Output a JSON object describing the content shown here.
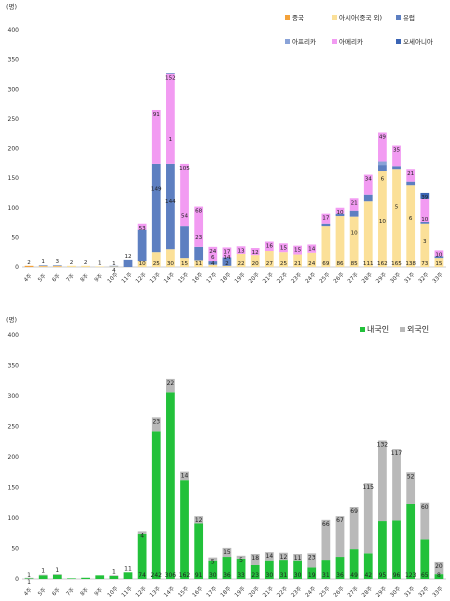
{
  "chart_data": [
    {
      "type": "bar",
      "stacked": true,
      "unit": "(명)",
      "ylim": [
        0,
        400
      ],
      "yticks": [
        0,
        50,
        100,
        150,
        200,
        250,
        300,
        350,
        400
      ],
      "legend_position": "top-right",
      "categories": [
        "4주",
        "5주",
        "6주",
        "7주",
        "8주",
        "9주",
        "10주",
        "11주",
        "12주",
        "13주",
        "14주",
        "15주",
        "16주",
        "17주",
        "18주",
        "19주",
        "20주",
        "21주",
        "22주",
        "23주",
        "24주",
        "25주",
        "26주",
        "27주",
        "28주",
        "29주",
        "30주",
        "31주",
        "32주",
        "33주"
      ],
      "colors": {
        "china": "#f4a23a",
        "asia": "#fbe098",
        "europe": "#5d7fc1",
        "africa": "#8aa3d8",
        "america": "#f29bf2",
        "oceania": "#3a64b4"
      },
      "series": [
        {
          "key": "china",
          "name": "중국",
          "values": [
            2,
            1,
            1,
            0,
            0,
            0,
            0,
            0,
            0,
            0,
            0,
            0,
            0,
            0,
            0,
            0,
            0,
            0,
            0,
            0,
            0,
            0,
            0,
            0,
            0,
            0,
            0,
            0,
            0,
            0
          ]
        },
        {
          "key": "asia",
          "name": "아시아(중국 외)",
          "values": [
            0,
            1,
            1,
            2,
            2,
            1,
            1,
            0,
            10,
            25,
            30,
            15,
            11,
            4,
            2,
            22,
            20,
            27,
            25,
            21,
            24,
            69,
            86,
            85,
            111,
            162,
            165,
            138,
            73,
            15
          ]
        },
        {
          "key": "europe",
          "name": "유럽",
          "values": [
            0,
            1,
            1,
            0,
            0,
            0,
            1,
            12,
            53,
            149,
            144,
            54,
            23,
            6,
            14,
            0,
            0,
            0,
            0,
            0,
            0,
            4,
            4,
            10,
            11,
            10,
            5,
            6,
            3,
            3
          ]
        },
        {
          "key": "africa",
          "name": "아프리카",
          "values": [
            0,
            0,
            0,
            0,
            0,
            0,
            0,
            0,
            0,
            0,
            0,
            0,
            0,
            0,
            0,
            0,
            0,
            0,
            0,
            0,
            0,
            0,
            0,
            0,
            0,
            6,
            0,
            0,
            0,
            0
          ]
        },
        {
          "key": "america",
          "name": "아메리카",
          "values": [
            0,
            0,
            0,
            0,
            0,
            0,
            0,
            0,
            10,
            91,
            152,
            105,
            68,
            24,
            17,
            13,
            12,
            16,
            15,
            15,
            14,
            17,
            10,
            21,
            34,
            49,
            35,
            21,
            39,
            10
          ]
        },
        {
          "key": "oceania",
          "name": "오세아니아",
          "values": [
            0,
            0,
            0,
            0,
            0,
            0,
            0,
            0,
            0,
            0,
            1,
            0,
            0,
            0,
            0,
            0,
            0,
            0,
            0,
            0,
            0,
            0,
            0,
            0,
            0,
            0,
            0,
            0,
            10,
            0
          ]
        }
      ],
      "data_labels": [
        {
          "i": 0,
          "text": "2"
        },
        {
          "i": 1,
          "text": "1"
        },
        {
          "i": 2,
          "text": "3"
        },
        {
          "i": 3,
          "text": "2"
        },
        {
          "i": 4,
          "text": "2"
        },
        {
          "i": 5,
          "text": "1"
        },
        {
          "i": 6,
          "text": "4"
        },
        {
          "i": 6,
          "text": "1"
        },
        {
          "i": 7,
          "text": "12"
        },
        {
          "i": 8,
          "text": "53"
        },
        {
          "i": 8,
          "text": "10"
        },
        {
          "i": 9,
          "text": "91"
        },
        {
          "i": 9,
          "text": "149"
        },
        {
          "i": 9,
          "text": "25"
        },
        {
          "i": 10,
          "text": "152"
        },
        {
          "i": 10,
          "text": "1"
        },
        {
          "i": 10,
          "text": "144"
        },
        {
          "i": 10,
          "text": "30"
        },
        {
          "i": 11,
          "text": "105"
        },
        {
          "i": 11,
          "text": "54"
        },
        {
          "i": 11,
          "text": "15"
        },
        {
          "i": 12,
          "text": "68"
        },
        {
          "i": 12,
          "text": "23"
        },
        {
          "i": 12,
          "text": "11"
        },
        {
          "i": 13,
          "text": "24"
        },
        {
          "i": 13,
          "text": "6"
        },
        {
          "i": 13,
          "text": "4"
        },
        {
          "i": 14,
          "text": "17"
        },
        {
          "i": 14,
          "text": "14"
        },
        {
          "i": 14,
          "text": "2"
        },
        {
          "i": 15,
          "text": "13"
        },
        {
          "i": 15,
          "text": "22"
        },
        {
          "i": 16,
          "text": "12"
        },
        {
          "i": 16,
          "text": "20"
        },
        {
          "i": 17,
          "text": "16"
        },
        {
          "i": 17,
          "text": "27"
        },
        {
          "i": 18,
          "text": "15"
        },
        {
          "i": 18,
          "text": "25"
        },
        {
          "i": 19,
          "text": "15"
        },
        {
          "i": 19,
          "text": "21"
        },
        {
          "i": 20,
          "text": "14"
        },
        {
          "i": 20,
          "text": "24"
        },
        {
          "i": 21,
          "text": "17"
        },
        {
          "i": 21,
          "text": "69"
        },
        {
          "i": 22,
          "text": "10"
        },
        {
          "i": 22,
          "text": "86"
        },
        {
          "i": 23,
          "text": "21"
        },
        {
          "i": 23,
          "text": "10"
        },
        {
          "i": 23,
          "text": "85"
        },
        {
          "i": 24,
          "text": "34"
        },
        {
          "i": 24,
          "text": "111"
        },
        {
          "i": 25,
          "text": "49"
        },
        {
          "i": 25,
          "text": "6"
        },
        {
          "i": 25,
          "text": "10"
        },
        {
          "i": 25,
          "text": "162"
        },
        {
          "i": 26,
          "text": "35"
        },
        {
          "i": 26,
          "text": "5"
        },
        {
          "i": 26,
          "text": "165"
        },
        {
          "i": 27,
          "text": "21"
        },
        {
          "i": 27,
          "text": "6"
        },
        {
          "i": 27,
          "text": "138"
        },
        {
          "i": 28,
          "text": "39"
        },
        {
          "i": 28,
          "text": "10"
        },
        {
          "i": 28,
          "text": "3"
        },
        {
          "i": 28,
          "text": "73"
        },
        {
          "i": 29,
          "text": "10"
        },
        {
          "i": 29,
          "text": "15"
        }
      ]
    },
    {
      "type": "bar",
      "stacked": true,
      "unit": "(명)",
      "ylim": [
        0,
        400
      ],
      "yticks": [
        0,
        50,
        100,
        150,
        200,
        250,
        300,
        350,
        400
      ],
      "legend_position": "top-right",
      "categories": [
        "4주",
        "5주",
        "6주",
        "7주",
        "8주",
        "9주",
        "10주",
        "11주",
        "12주",
        "13주",
        "14주",
        "15주",
        "16주",
        "17주",
        "18주",
        "19주",
        "20주",
        "21주",
        "22주",
        "23주",
        "24주",
        "25주",
        "26주",
        "27주",
        "28주",
        "29주",
        "30주",
        "31주",
        "32주",
        "33주"
      ],
      "colors": {
        "domestic": "#22c13a",
        "foreign": "#b9b9b9"
      },
      "series": [
        {
          "key": "domestic",
          "name": "내국인",
          "values": [
            1,
            6,
            7,
            1,
            2,
            6,
            5,
            11,
            74,
            242,
            306,
            162,
            91,
            30,
            36,
            33,
            23,
            30,
            31,
            30,
            19,
            31,
            36,
            49,
            42,
            95,
            96,
            123,
            65,
            8
          ]
        },
        {
          "key": "foreign",
          "name": "외국인",
          "values": [
            1,
            1,
            1,
            0,
            0,
            0,
            1,
            0,
            4,
            23,
            22,
            14,
            12,
            5,
            15,
            5,
            18,
            14,
            12,
            11,
            23,
            66,
            67,
            69,
            115,
            132,
            117,
            52,
            60,
            20
          ]
        }
      ],
      "data_labels": [
        {
          "i": 0,
          "text": "1"
        },
        {
          "i": 0,
          "text": "1"
        },
        {
          "i": 1,
          "text": "1"
        },
        {
          "i": 2,
          "text": "1"
        },
        {
          "i": 6,
          "text": "1"
        },
        {
          "i": 7,
          "text": "11"
        },
        {
          "i": 8,
          "text": "4"
        },
        {
          "i": 8,
          "text": "74"
        },
        {
          "i": 9,
          "text": "23"
        },
        {
          "i": 9,
          "text": "242"
        },
        {
          "i": 10,
          "text": "22"
        },
        {
          "i": 10,
          "text": "306"
        },
        {
          "i": 11,
          "text": "14"
        },
        {
          "i": 11,
          "text": "162"
        },
        {
          "i": 12,
          "text": "12"
        },
        {
          "i": 12,
          "text": "91"
        },
        {
          "i": 13,
          "text": "5"
        },
        {
          "i": 13,
          "text": "30"
        },
        {
          "i": 14,
          "text": "15"
        },
        {
          "i": 14,
          "text": "36"
        },
        {
          "i": 15,
          "text": "5"
        },
        {
          "i": 15,
          "text": "33"
        },
        {
          "i": 16,
          "text": "18"
        },
        {
          "i": 16,
          "text": "23"
        },
        {
          "i": 17,
          "text": "14"
        },
        {
          "i": 17,
          "text": "30"
        },
        {
          "i": 18,
          "text": "12"
        },
        {
          "i": 18,
          "text": "31"
        },
        {
          "i": 19,
          "text": "11"
        },
        {
          "i": 19,
          "text": "30"
        },
        {
          "i": 20,
          "text": "23"
        },
        {
          "i": 20,
          "text": "19"
        },
        {
          "i": 21,
          "text": "66"
        },
        {
          "i": 21,
          "text": "31"
        },
        {
          "i": 22,
          "text": "67"
        },
        {
          "i": 22,
          "text": "36"
        },
        {
          "i": 23,
          "text": "69"
        },
        {
          "i": 23,
          "text": "49"
        },
        {
          "i": 24,
          "text": "115"
        },
        {
          "i": 24,
          "text": "42"
        },
        {
          "i": 25,
          "text": "132"
        },
        {
          "i": 25,
          "text": "95"
        },
        {
          "i": 26,
          "text": "117"
        },
        {
          "i": 26,
          "text": "96"
        },
        {
          "i": 27,
          "text": "52"
        },
        {
          "i": 27,
          "text": "123"
        },
        {
          "i": 28,
          "text": "60"
        },
        {
          "i": 28,
          "text": "65"
        },
        {
          "i": 29,
          "text": "20"
        },
        {
          "i": 29,
          "text": "8"
        }
      ]
    }
  ]
}
